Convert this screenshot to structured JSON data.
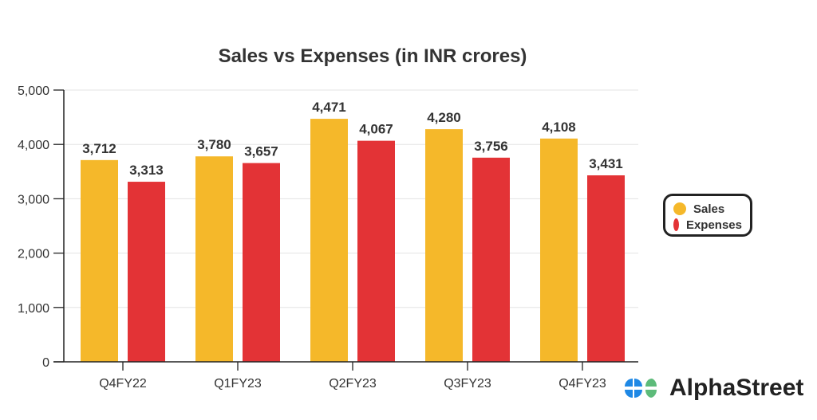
{
  "chart_data": {
    "type": "bar",
    "title": "Sales vs Expenses (in INR crores)",
    "categories": [
      "Q4FY22",
      "Q1FY23",
      "Q2FY23",
      "Q3FY23",
      "Q4FY23"
    ],
    "series": [
      {
        "name": "Sales",
        "color": "#F5B82A",
        "values": [
          3712,
          3780,
          4471,
          4280,
          4108
        ],
        "labels": [
          "3,712",
          "3,780",
          "4,471",
          "4,280",
          "4,108"
        ]
      },
      {
        "name": "Expenses",
        "color": "#E33336",
        "values": [
          3313,
          3657,
          4067,
          3756,
          3431
        ],
        "labels": [
          "3,313",
          "3,657",
          "4,067",
          "3,756",
          "3,431"
        ]
      }
    ],
    "ylim": [
      0,
      5000
    ],
    "yticks": [
      0,
      1000,
      2000,
      3000,
      4000,
      5000
    ],
    "ytick_labels": [
      "0",
      "1,000",
      "2,000",
      "3,000",
      "4,000",
      "5,000"
    ],
    "grid": true,
    "legend_position": "right"
  },
  "branding": {
    "logo_text": "AlphaStreet"
  }
}
